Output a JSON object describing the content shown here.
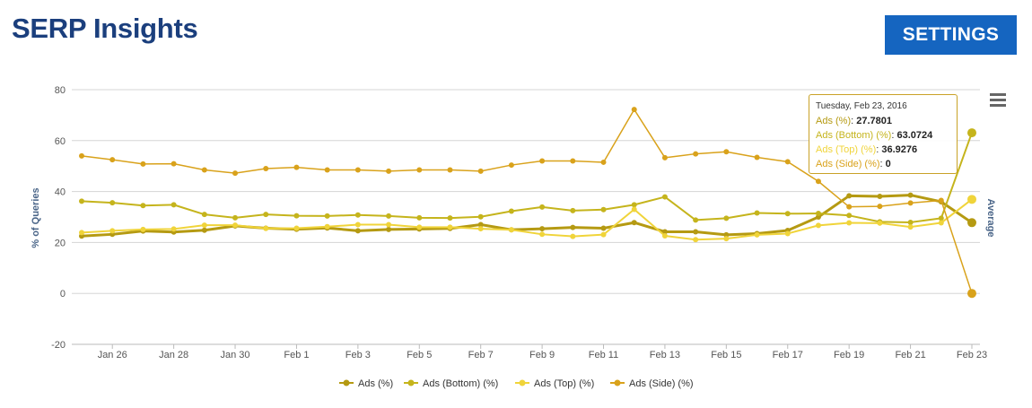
{
  "header": {
    "title": "SERP Insights",
    "settings_label": "SETTINGS"
  },
  "chart_data": {
    "type": "line",
    "title": "",
    "ylabel": "% of Queries",
    "ylabel_right": "Average",
    "ylim": [
      -20,
      80
    ],
    "yticks": [
      -20,
      0,
      20,
      40,
      60,
      80
    ],
    "x": [
      "Jan 25",
      "Jan 26",
      "Jan 27",
      "Jan 28",
      "Jan 29",
      "Jan 30",
      "Jan 31",
      "Feb 1",
      "Feb 2",
      "Feb 3",
      "Feb 4",
      "Feb 5",
      "Feb 6",
      "Feb 7",
      "Feb 8",
      "Feb 9",
      "Feb 10",
      "Feb 11",
      "Feb 12",
      "Feb 13",
      "Feb 14",
      "Feb 15",
      "Feb 16",
      "Feb 17",
      "Feb 18",
      "Feb 19",
      "Feb 20",
      "Feb 21",
      "Feb 22",
      "Feb 23"
    ],
    "x_tick_labels": [
      "Jan 26",
      "Jan 28",
      "Jan 30",
      "Feb 1",
      "Feb 3",
      "Feb 5",
      "Feb 7",
      "Feb 9",
      "Feb 11",
      "Feb 13",
      "Feb 15",
      "Feb 17",
      "Feb 19",
      "Feb 21",
      "Feb 23"
    ],
    "legend_position": "bottom-center",
    "grid": true,
    "series": [
      {
        "name": "Ads (%)",
        "color": "#b59a12",
        "values": [
          22.5,
          23.2,
          24.5,
          24.1,
          24.8,
          26.5,
          25.6,
          25.2,
          25.7,
          24.6,
          25.1,
          25.3,
          25.5,
          27.0,
          25.0,
          25.4,
          25.9,
          25.6,
          27.8,
          24.2,
          24.2,
          23.0,
          23.5,
          24.7,
          30.0,
          38.3,
          38.1,
          38.6,
          36.0,
          27.7801
        ]
      },
      {
        "name": "Ads (Bottom) (%)",
        "color": "#c5b41c",
        "values": [
          36.2,
          35.6,
          34.5,
          34.8,
          31.0,
          29.7,
          31.0,
          30.5,
          30.4,
          30.8,
          30.4,
          29.7,
          29.6,
          30.1,
          32.3,
          33.9,
          32.5,
          32.9,
          34.8,
          37.9,
          28.8,
          29.5,
          31.6,
          31.3,
          31.4,
          30.6,
          28.1,
          27.9,
          29.5,
          63.0724
        ]
      },
      {
        "name": "Ads (Top) (%)",
        "color": "#f0d43a",
        "values": [
          23.9,
          24.6,
          25.1,
          25.3,
          26.8,
          26.8,
          25.5,
          25.6,
          26.2,
          27.0,
          27.0,
          26.0,
          26.0,
          25.4,
          25.0,
          23.2,
          22.4,
          23.1,
          33.0,
          22.6,
          21.1,
          21.5,
          23.0,
          23.5,
          26.7,
          27.7,
          27.6,
          26.1,
          27.7,
          36.9276
        ]
      },
      {
        "name": "Ads (Side) (%)",
        "color": "#d9a21b",
        "values": [
          54.0,
          52.5,
          50.8,
          50.9,
          48.5,
          47.2,
          49.0,
          49.5,
          48.5,
          48.5,
          48.0,
          48.5,
          48.5,
          48.0,
          50.4,
          52.0,
          52.0,
          51.5,
          72.2,
          53.3,
          54.8,
          55.6,
          53.4,
          51.7,
          44.0,
          34.0,
          34.2,
          35.5,
          36.5,
          0
        ]
      }
    ],
    "tooltip": {
      "date": "Tuesday, Feb 23, 2016",
      "rows": [
        {
          "name": "Ads (%)",
          "value": "27.7801"
        },
        {
          "name": "Ads (Bottom) (%)",
          "value": "63.0724"
        },
        {
          "name": "Ads (Top) (%)",
          "value": "36.9276"
        },
        {
          "name": "Ads (Side) (%)",
          "value": "0"
        }
      ]
    },
    "menu_icon": "hamburger-menu-icon"
  }
}
